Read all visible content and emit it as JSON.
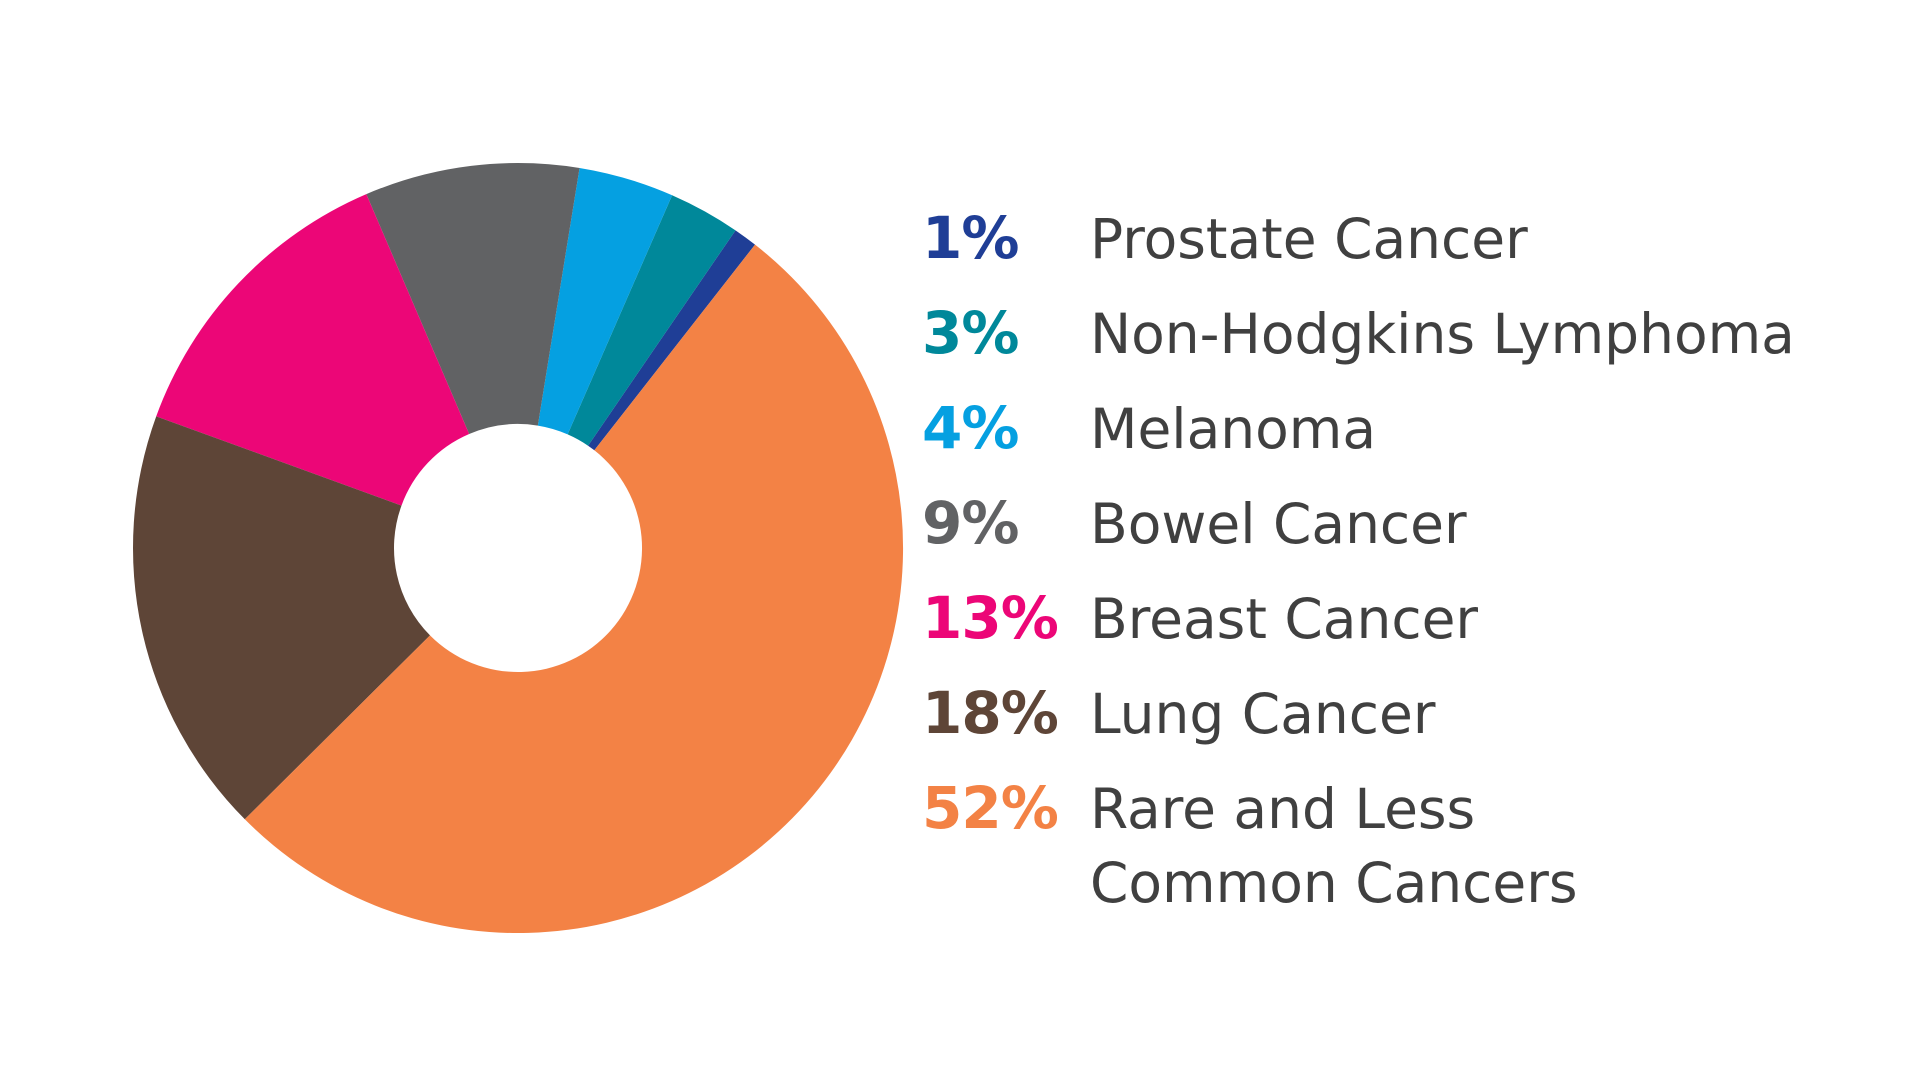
{
  "chart_data": {
    "type": "pie",
    "title": "",
    "legend_position": "right",
    "slices": [
      {
        "label": "Prostate Cancer",
        "value": 1,
        "value_label": "1%",
        "color": "#1F3E96"
      },
      {
        "label": "Non-Hodgkins Lymphoma",
        "value": 3,
        "value_label": "3%",
        "color": "#00889A"
      },
      {
        "label": "Melanoma",
        "value": 4,
        "value_label": "4%",
        "color": "#05A0E1"
      },
      {
        "label": "Bowel Cancer",
        "value": 9,
        "value_label": "9%",
        "color": "#616264"
      },
      {
        "label": "Breast Cancer",
        "value": 13,
        "value_label": "13%",
        "color": "#EC0677"
      },
      {
        "label": "Lung Cancer",
        "value": 18,
        "value_label": "18%",
        "color": "#5E4537"
      },
      {
        "label": "Rare and Less\nCommon Cancers",
        "value": 52,
        "value_label": "52%",
        "color": "#F38245"
      }
    ]
  }
}
